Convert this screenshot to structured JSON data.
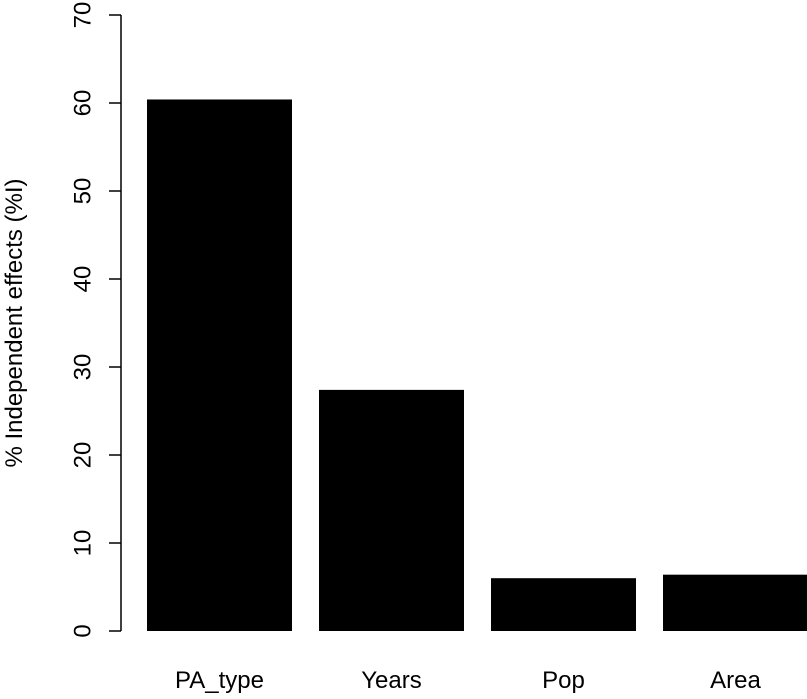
{
  "chart_data": {
    "type": "bar",
    "title": "",
    "xlabel": "",
    "ylabel": "% Independent effects (%I)",
    "categories": [
      "PA_type",
      "Years",
      "Pop",
      "Area"
    ],
    "values": [
      60.4,
      27.4,
      6.0,
      6.4
    ],
    "ylim": [
      0,
      70
    ],
    "yticks": [
      0,
      10,
      20,
      30,
      40,
      50,
      60,
      70
    ],
    "grid": false,
    "legend": "none",
    "bar_color": "#000000",
    "axis_color": "#000000"
  }
}
